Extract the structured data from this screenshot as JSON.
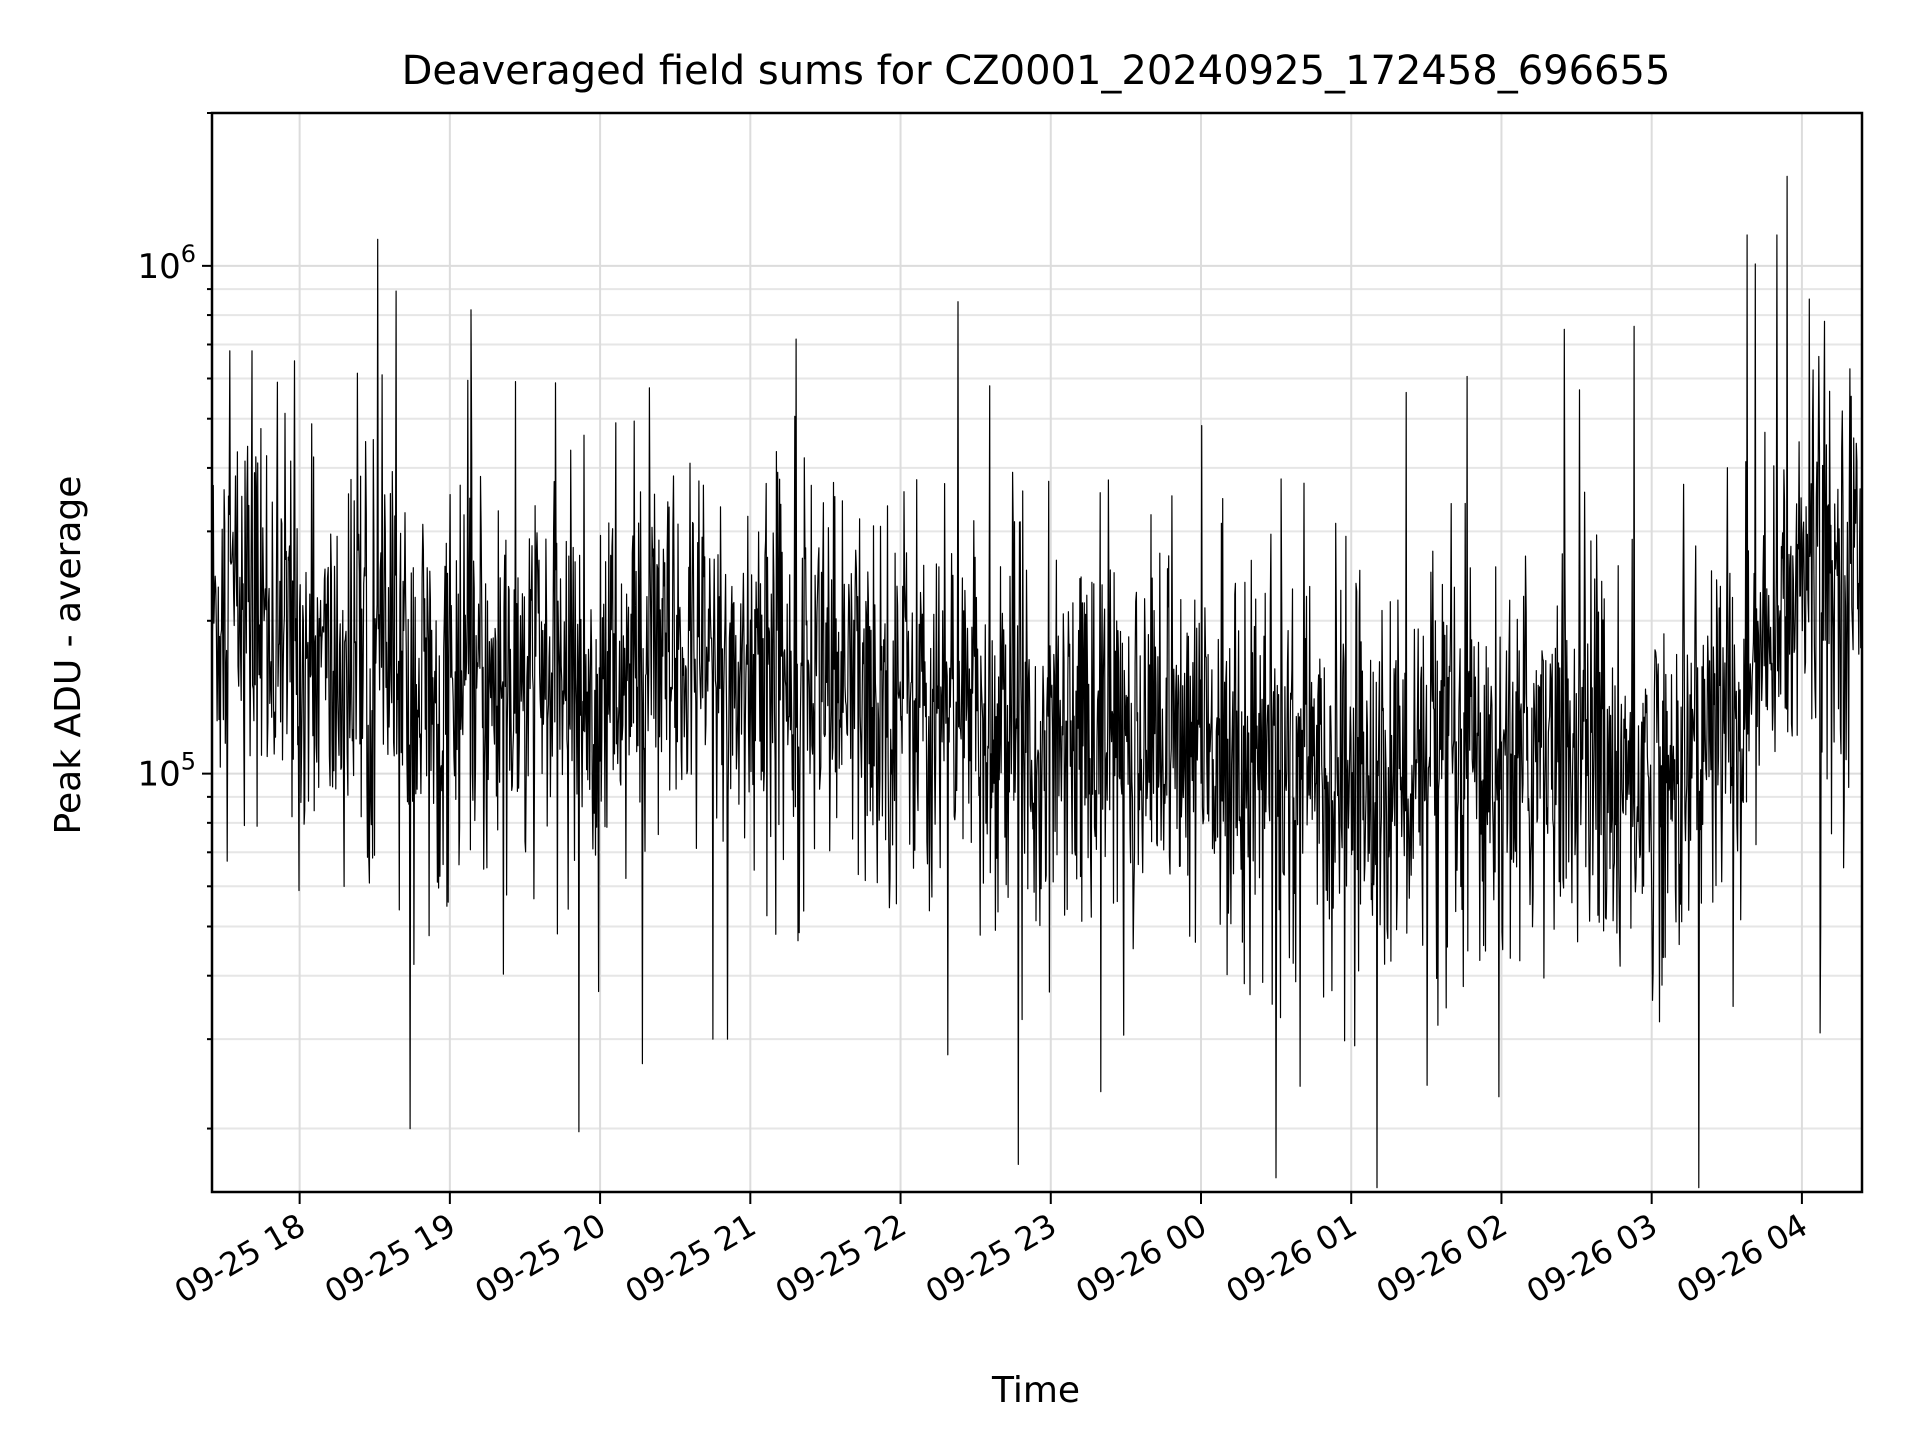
{
  "chart_data": {
    "type": "line",
    "title": "Deaveraged field sums for CZ0001_20240925_172458_696655",
    "xlabel": "Time",
    "ylabel": "Peak ADU - average",
    "yscale": "log",
    "ylim": [
      15000,
      2000000
    ],
    "xlim": [
      "2024-09-25 17:25",
      "2024-09-26 04:24"
    ],
    "grid": "major and minor, light gray",
    "legend": "none",
    "line_color": "#000000",
    "x_ticks": [
      {
        "t": "2024-09-25 18:00",
        "label": "09-25 18"
      },
      {
        "t": "2024-09-25 19:00",
        "label": "09-25 19"
      },
      {
        "t": "2024-09-25 20:00",
        "label": "09-25 20"
      },
      {
        "t": "2024-09-25 21:00",
        "label": "09-25 21"
      },
      {
        "t": "2024-09-25 22:00",
        "label": "09-25 22"
      },
      {
        "t": "2024-09-25 23:00",
        "label": "09-25 23"
      },
      {
        "t": "2024-09-26 00:00",
        "label": "09-26 00"
      },
      {
        "t": "2024-09-26 01:00",
        "label": "09-26 01"
      },
      {
        "t": "2024-09-26 02:00",
        "label": "09-26 02"
      },
      {
        "t": "2024-09-26 03:00",
        "label": "09-26 03"
      },
      {
        "t": "2024-09-26 04:00",
        "label": "09-26 04"
      }
    ],
    "y_ticks": [
      {
        "value": 100000,
        "base": "10",
        "exp": "5"
      },
      {
        "value": 1000000,
        "base": "10",
        "exp": "6"
      }
    ],
    "series": [
      {
        "x": [
          "2024-09-25 17:25",
          "2024-09-25 17:35",
          "2024-09-25 17:45",
          "2024-09-25 17:55",
          "2024-09-25 18:05",
          "2024-09-25 18:15",
          "2024-09-25 18:25",
          "2024-09-25 18:35",
          "2024-09-25 18:45",
          "2024-09-25 18:55",
          "2024-09-25 19:05",
          "2024-09-25 19:15",
          "2024-09-25 19:25",
          "2024-09-25 19:35",
          "2024-09-25 19:45",
          "2024-09-25 19:55",
          "2024-09-25 20:05",
          "2024-09-25 20:15",
          "2024-09-25 20:25",
          "2024-09-25 20:35",
          "2024-09-25 20:45",
          "2024-09-25 20:55",
          "2024-09-25 21:05",
          "2024-09-25 21:15",
          "2024-09-25 21:25",
          "2024-09-25 21:35",
          "2024-09-25 21:45",
          "2024-09-25 21:55",
          "2024-09-25 22:05",
          "2024-09-25 22:15",
          "2024-09-25 22:25",
          "2024-09-25 22:35",
          "2024-09-25 22:45",
          "2024-09-25 22:55",
          "2024-09-25 23:05",
          "2024-09-25 23:15",
          "2024-09-25 23:25",
          "2024-09-25 23:35",
          "2024-09-25 23:45",
          "2024-09-25 23:55",
          "2024-09-26 00:05",
          "2024-09-26 00:15",
          "2024-09-26 00:25",
          "2024-09-26 00:35",
          "2024-09-26 00:45",
          "2024-09-26 00:55",
          "2024-09-26 01:05",
          "2024-09-26 01:15",
          "2024-09-26 01:25",
          "2024-09-26 01:35",
          "2024-09-26 01:45",
          "2024-09-26 01:55",
          "2024-09-26 02:05",
          "2024-09-26 02:15",
          "2024-09-26 02:25",
          "2024-09-26 02:35",
          "2024-09-26 02:45",
          "2024-09-26 02:55",
          "2024-09-26 03:05",
          "2024-09-26 03:15",
          "2024-09-26 03:25",
          "2024-09-26 03:35",
          "2024-09-26 03:45",
          "2024-09-26 03:55",
          "2024-09-26 04:05",
          "2024-09-26 04:15",
          "2024-09-26 04:24"
        ],
        "y": [
          200000,
          220000,
          210000,
          180000,
          160000,
          150000,
          170000,
          160000,
          150000,
          140000,
          150000,
          145000,
          140000,
          150000,
          155000,
          150000,
          150000,
          155000,
          160000,
          165000,
          160000,
          155000,
          170000,
          175000,
          165000,
          150000,
          140000,
          145000,
          150000,
          140000,
          130000,
          125000,
          120000,
          125000,
          130000,
          125000,
          120000,
          115000,
          120000,
          115000,
          110000,
          115000,
          110000,
          105000,
          100000,
          100000,
          95000,
          95000,
          100000,
          95000,
          100000,
          105000,
          110000,
          115000,
          110000,
          115000,
          100000,
          95000,
          100000,
          110000,
          120000,
          140000,
          160000,
          220000,
          250000,
          240000,
          260000
        ],
        "peaks": [
          {
            "t": "2024-09-25 17:32",
            "y": 680000
          },
          {
            "t": "2024-09-25 17:41",
            "y": 680000
          },
          {
            "t": "2024-09-25 17:58",
            "y": 650000
          },
          {
            "t": "2024-09-25 18:33",
            "y": 610000
          },
          {
            "t": "2024-09-25 18:44",
            "y": 20000
          },
          {
            "t": "2024-09-25 20:45",
            "y": 30000
          },
          {
            "t": "2024-09-25 20:51",
            "y": 30000
          },
          {
            "t": "2024-09-25 22:23",
            "y": 850000
          },
          {
            "t": "2024-09-25 22:47",
            "y": 17000
          },
          {
            "t": "2024-09-26 00:30",
            "y": 16000
          },
          {
            "t": "2024-09-26 02:25",
            "y": 750000
          },
          {
            "t": "2024-09-26 02:53",
            "y": 760000
          },
          {
            "t": "2024-09-26 03:38",
            "y": 1150000
          },
          {
            "t": "2024-09-26 03:50",
            "y": 1150000
          },
          {
            "t": "2024-09-26 03:54",
            "y": 1500000
          },
          {
            "t": "2024-09-26 04:03",
            "y": 860000
          }
        ]
      }
    ]
  }
}
